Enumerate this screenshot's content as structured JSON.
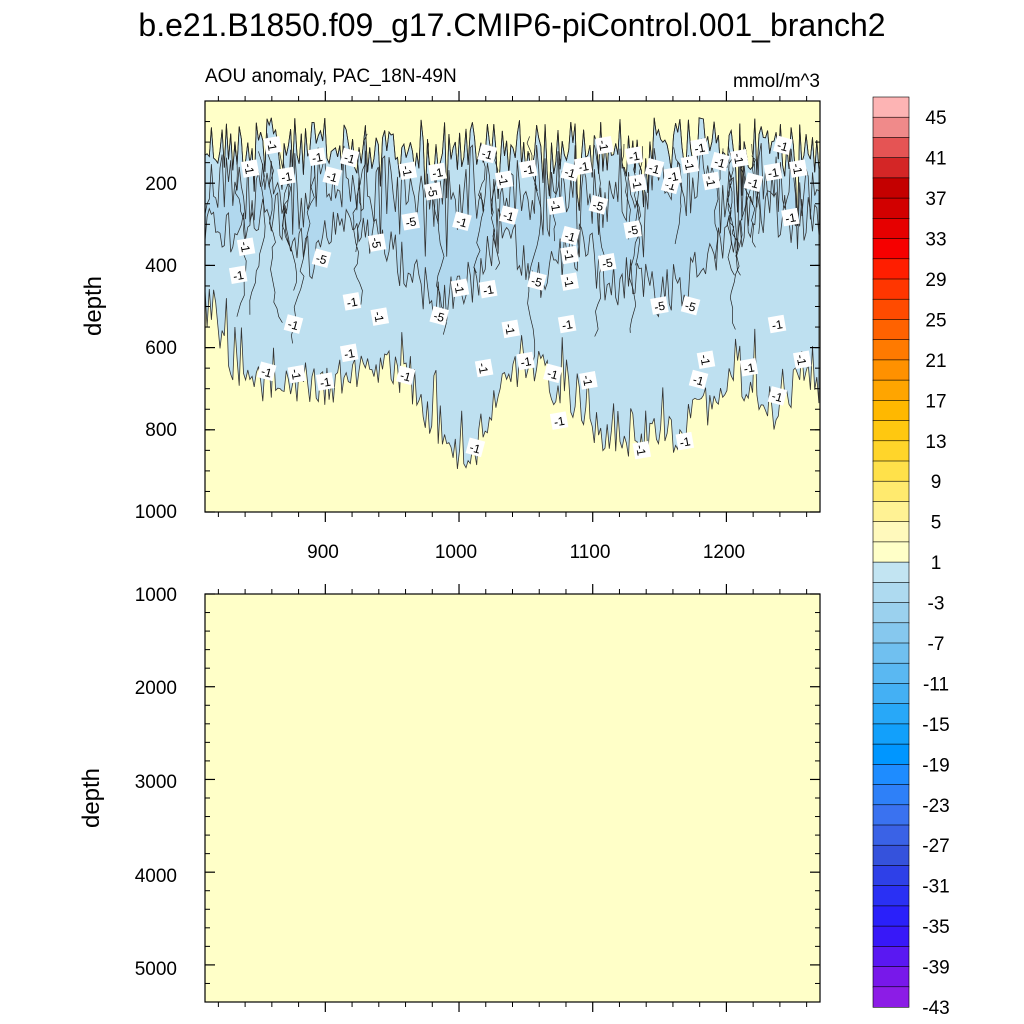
{
  "chart_data": {
    "type": "contour-section",
    "title": "b.e21.B1850.f09_g17.CMIP6-piControl.001_branch2",
    "subtitle_left": "AOU anomaly, PAC_18N-49N",
    "units": "mmol/m^3",
    "panels": [
      {
        "id": "upper",
        "ylabel": "depth",
        "yrange": [
          1000,
          0
        ],
        "yticks": [
          200,
          400,
          600,
          800,
          1000
        ],
        "xrange": [
          810,
          1270
        ],
        "xticks": [
          900,
          1000,
          1100,
          1200
        ],
        "contour_labels": [
          {
            "t": "-1",
            "x": 860,
            "y": 108
          },
          {
            "t": "-1",
            "x": 894,
            "y": 138
          },
          {
            "t": "-1",
            "x": 918,
            "y": 140
          },
          {
            "t": "-1",
            "x": 843,
            "y": 165
          },
          {
            "t": "-1",
            "x": 871,
            "y": 185
          },
          {
            "t": "-1",
            "x": 905,
            "y": 185
          },
          {
            "t": "-1",
            "x": 961,
            "y": 170
          },
          {
            "t": "-1",
            "x": 984,
            "y": 175
          },
          {
            "t": "-1",
            "x": 1021,
            "y": 130
          },
          {
            "t": "-5",
            "x": 980,
            "y": 220
          },
          {
            "t": "-5",
            "x": 964,
            "y": 295
          },
          {
            "t": "-1",
            "x": 1002,
            "y": 295
          },
          {
            "t": "-1",
            "x": 1033,
            "y": 192
          },
          {
            "t": "-1",
            "x": 1052,
            "y": 168
          },
          {
            "t": "-1",
            "x": 1037,
            "y": 280
          },
          {
            "t": "-1",
            "x": 1072,
            "y": 255
          },
          {
            "t": "-1",
            "x": 1093,
            "y": 160
          },
          {
            "t": "-5",
            "x": 1104,
            "y": 255
          },
          {
            "t": "-1",
            "x": 1108,
            "y": 108
          },
          {
            "t": "-1",
            "x": 1131,
            "y": 135
          },
          {
            "t": "-1",
            "x": 1146,
            "y": 165
          },
          {
            "t": "-1",
            "x": 1133,
            "y": 200
          },
          {
            "t": "-5",
            "x": 1130,
            "y": 315
          },
          {
            "t": "-1",
            "x": 1158,
            "y": 205
          },
          {
            "t": "-1",
            "x": 1172,
            "y": 155
          },
          {
            "t": "-1",
            "x": 1180,
            "y": 115
          },
          {
            "t": "-1",
            "x": 1195,
            "y": 150
          },
          {
            "t": "-1",
            "x": 1209,
            "y": 140
          },
          {
            "t": "-1",
            "x": 1235,
            "y": 175
          },
          {
            "t": "-1",
            "x": 1242,
            "y": 110
          },
          {
            "t": "-1",
            "x": 1253,
            "y": 165
          },
          {
            "t": "-1",
            "x": 1248,
            "y": 285
          },
          {
            "t": "-1",
            "x": 1220,
            "y": 200
          },
          {
            "t": "-1",
            "x": 1188,
            "y": 195
          },
          {
            "t": "-1",
            "x": 1160,
            "y": 185
          },
          {
            "t": "-1",
            "x": 1083,
            "y": 175
          },
          {
            "t": "-1",
            "x": 840,
            "y": 355
          },
          {
            "t": "-1",
            "x": 835,
            "y": 425
          },
          {
            "t": "-5",
            "x": 897,
            "y": 385
          },
          {
            "t": "-5",
            "x": 938,
            "y": 345
          },
          {
            "t": "-1",
            "x": 920,
            "y": 490
          },
          {
            "t": "-1",
            "x": 876,
            "y": 545
          },
          {
            "t": "-1",
            "x": 1000,
            "y": 455
          },
          {
            "t": "-1",
            "x": 1022,
            "y": 460
          },
          {
            "t": "-5",
            "x": 1058,
            "y": 440
          },
          {
            "t": "-1",
            "x": 1082,
            "y": 440
          },
          {
            "t": "-5",
            "x": 1111,
            "y": 395
          },
          {
            "t": "-1",
            "x": 1083,
            "y": 330
          },
          {
            "t": "-1",
            "x": 1082,
            "y": 375
          },
          {
            "t": "-5",
            "x": 1150,
            "y": 500
          },
          {
            "t": "-5",
            "x": 1173,
            "y": 500
          },
          {
            "t": "-1",
            "x": 1038,
            "y": 555
          },
          {
            "t": "-1",
            "x": 1081,
            "y": 545
          },
          {
            "t": "-5",
            "x": 985,
            "y": 525
          },
          {
            "t": "-1",
            "x": 940,
            "y": 525
          },
          {
            "t": "-1",
            "x": 918,
            "y": 615
          },
          {
            "t": "-1",
            "x": 856,
            "y": 660
          },
          {
            "t": "-1",
            "x": 878,
            "y": 665
          },
          {
            "t": "-1",
            "x": 900,
            "y": 685
          },
          {
            "t": "-1",
            "x": 960,
            "y": 670
          },
          {
            "t": "-1",
            "x": 1018,
            "y": 650
          },
          {
            "t": "-1",
            "x": 1050,
            "y": 635
          },
          {
            "t": "-1",
            "x": 1070,
            "y": 665
          },
          {
            "t": "-1",
            "x": 1096,
            "y": 680
          },
          {
            "t": "-1",
            "x": 1075,
            "y": 780
          },
          {
            "t": "-1",
            "x": 1012,
            "y": 845
          },
          {
            "t": "-1",
            "x": 1136,
            "y": 850
          },
          {
            "t": "-1",
            "x": 1169,
            "y": 830
          },
          {
            "t": "-1",
            "x": 1179,
            "y": 680
          },
          {
            "t": "-1",
            "x": 1184,
            "y": 630
          },
          {
            "t": "-1",
            "x": 1217,
            "y": 650
          },
          {
            "t": "-1",
            "x": 1238,
            "y": 720
          },
          {
            "t": "-1",
            "x": 1256,
            "y": 630
          },
          {
            "t": "-1",
            "x": 1238,
            "y": 545
          }
        ]
      },
      {
        "id": "lower",
        "ylabel": "depth",
        "yrange": [
          1000,
          5400
        ],
        "yticks": [
          1000,
          2000,
          3000,
          4000,
          5000
        ],
        "xrange": [
          810,
          1270
        ],
        "xticks": [
          900,
          1000,
          1100,
          1200
        ]
      }
    ],
    "colorbar": {
      "label_values": [
        "45",
        "41",
        "37",
        "33",
        "29",
        "25",
        "21",
        "17",
        "13",
        "9",
        "5",
        "1",
        "-3",
        "-7",
        "-11",
        "-15",
        "-19",
        "-23",
        "-27",
        "-31",
        "-35",
        "-39",
        "-43"
      ],
      "colors": [
        "#FDB4B4",
        "#F08A8A",
        "#E55454",
        "#D42626",
        "#C40000",
        "#D20000",
        "#E60000",
        "#F60000",
        "#FF1E00",
        "#FF3600",
        "#FF4B00",
        "#FF6200",
        "#FF7A00",
        "#FF9100",
        "#FFA500",
        "#FFB800",
        "#FFC810",
        "#FFD52A",
        "#FFE14A",
        "#FFEA6E",
        "#FFF294",
        "#FFF9BC",
        "#FFFFC8",
        "#C2E4F2",
        "#AEDAF0",
        "#9BD1EE",
        "#86C8EE",
        "#70C0F0",
        "#5AB8F2",
        "#44B0F4",
        "#28A8F8",
        "#12A0FB",
        "#0096FF",
        "#1E8CFF",
        "#2E80F8",
        "#3A72F0",
        "#3A62E6",
        "#3552DC",
        "#2E40E8",
        "#2A30F4",
        "#2A20FA",
        "#3818F8",
        "#5A18F2",
        "#7818EA",
        "#8C1CE6"
      ]
    },
    "colors": {
      "below_minus1": "#BEE0F0",
      "below_minus5": "#A8D4EC",
      "background_zero": "#FFFFC8"
    }
  }
}
